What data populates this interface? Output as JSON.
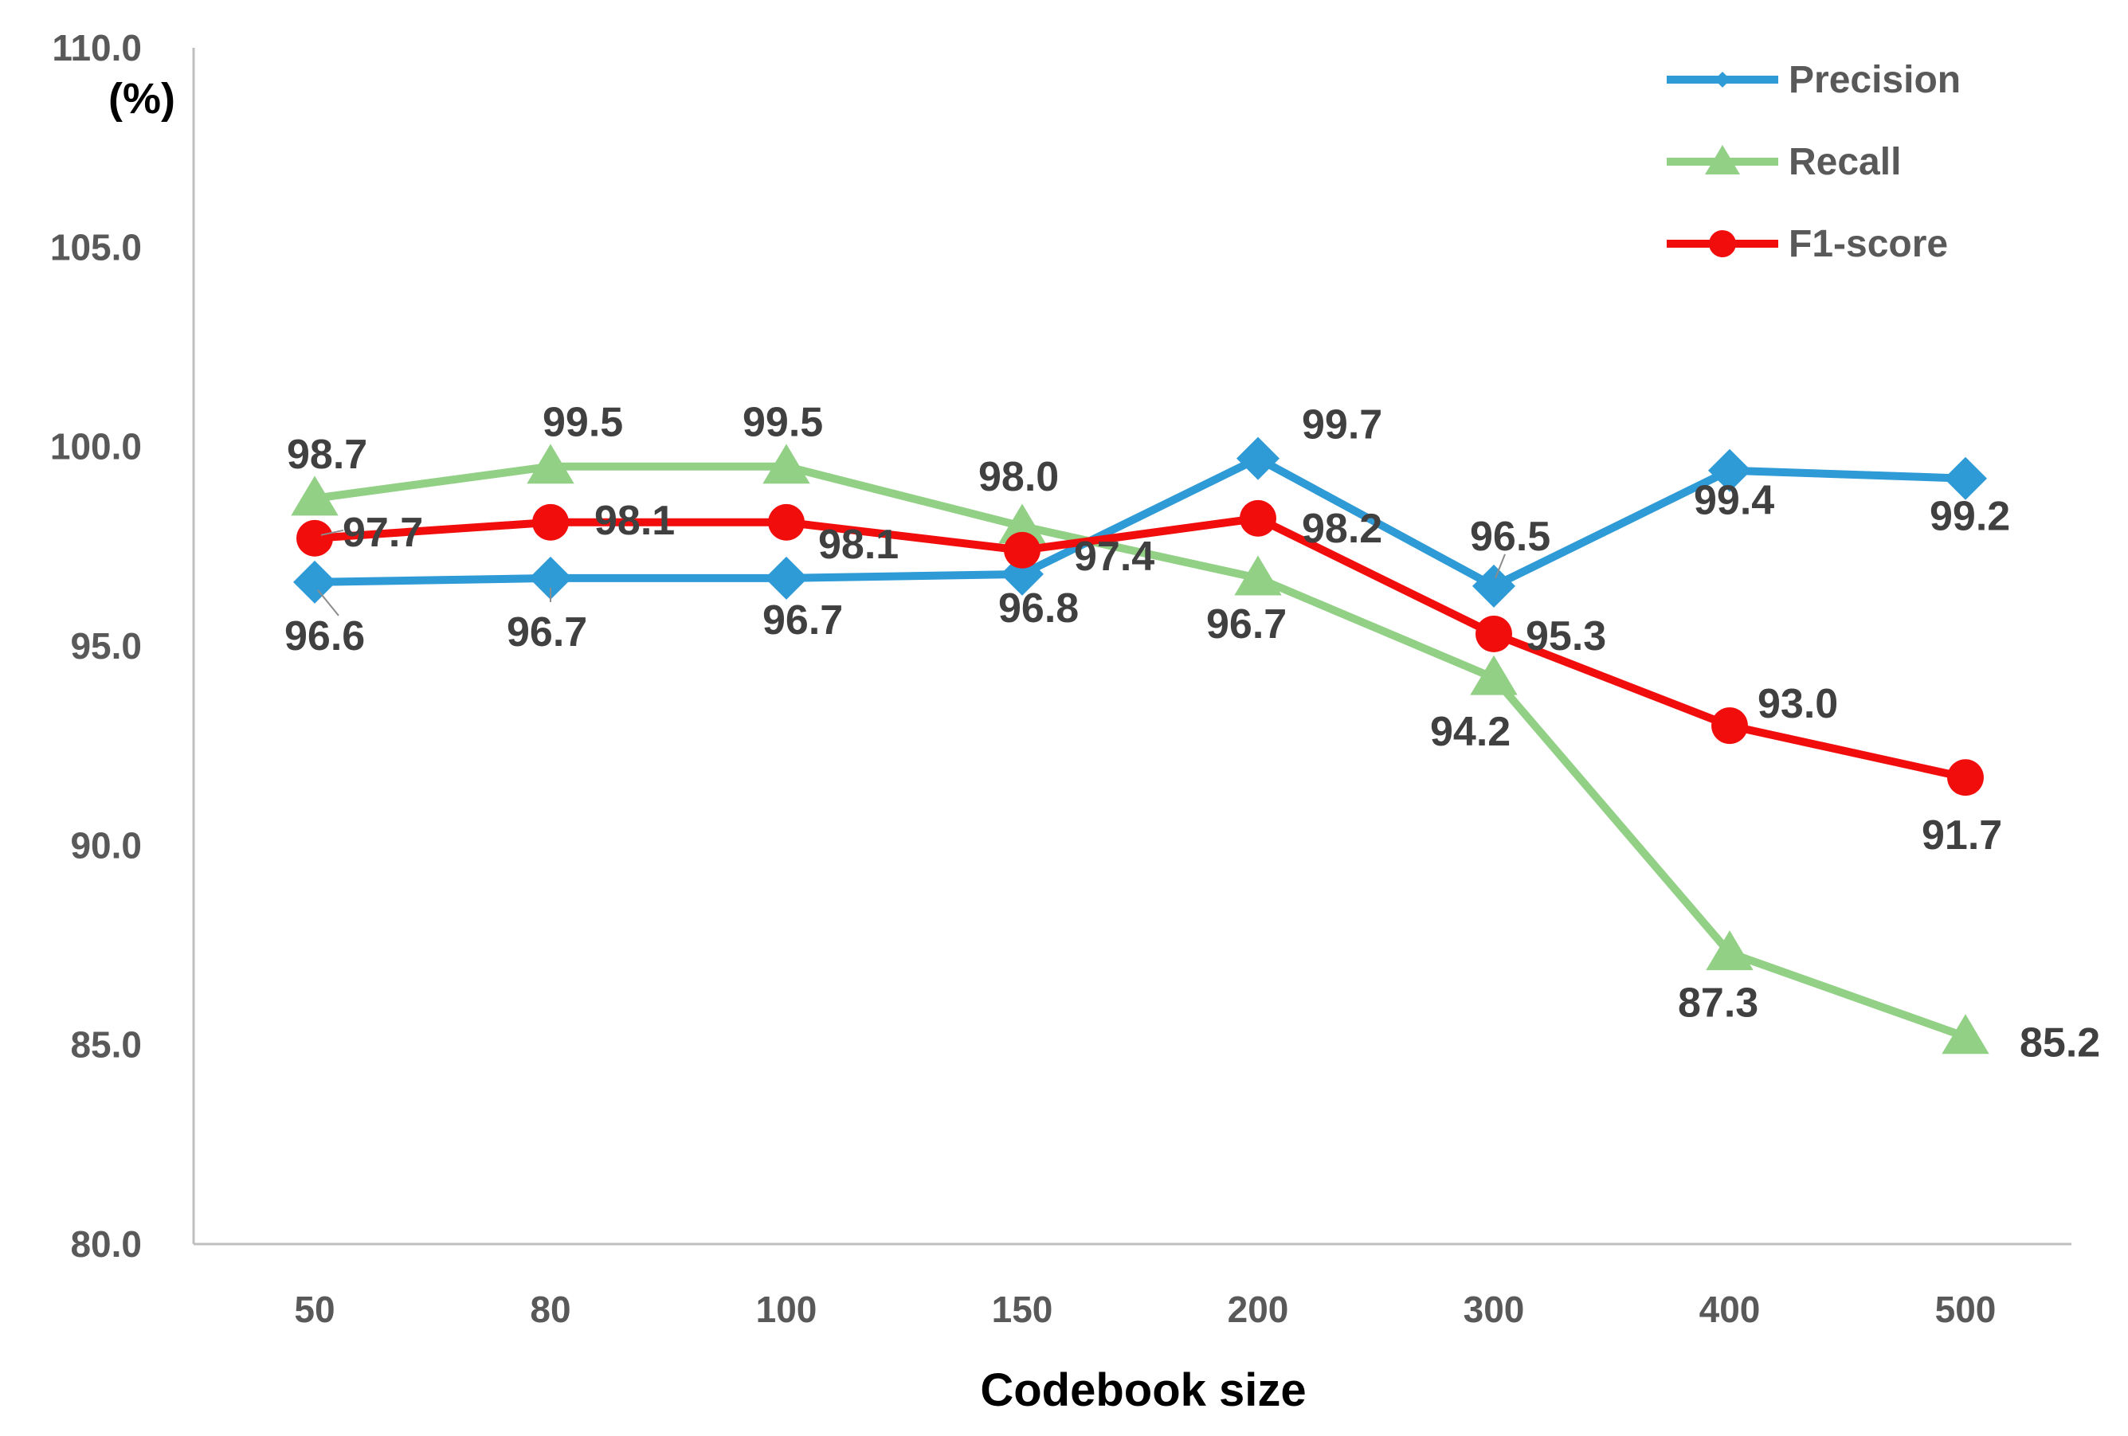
{
  "chart_data": {
    "type": "line",
    "title": "",
    "xlabel": "Codebook size",
    "ylabel": "(%)",
    "ylim": [
      80.0,
      110.0
    ],
    "yticks": [
      "80.0",
      "85.0",
      "90.0",
      "95.0",
      "100.0",
      "105.0",
      "110.0"
    ],
    "categories": [
      "50",
      "80",
      "100",
      "150",
      "200",
      "300",
      "400",
      "500"
    ],
    "legend_position": "top-right",
    "grid": false,
    "series": [
      {
        "name": "Precision",
        "color": "#2E9AD6",
        "marker": "diamond",
        "values": [
          96.6,
          96.7,
          96.7,
          96.8,
          99.7,
          96.5,
          99.4,
          99.2
        ],
        "labels": [
          "96.6",
          "96.7",
          "96.7",
          "96.8",
          "99.7",
          "96.5",
          "99.4",
          "99.2"
        ]
      },
      {
        "name": "Recall",
        "color": "#92D086",
        "marker": "triangle",
        "values": [
          98.7,
          99.5,
          99.5,
          98.0,
          96.7,
          94.2,
          87.3,
          85.2
        ],
        "labels": [
          "98.7",
          "99.5",
          "99.5",
          "98.0",
          "96.7",
          "94.2",
          "87.3",
          "85.2"
        ]
      },
      {
        "name": "F1-score",
        "color": "#F20D0D",
        "marker": "circle",
        "values": [
          97.7,
          98.1,
          98.1,
          97.4,
          98.2,
          95.3,
          93.0,
          91.7
        ],
        "labels": [
          "97.7",
          "98.1",
          "98.1",
          "97.4",
          "98.2",
          "95.3",
          "93.0",
          "91.7"
        ]
      }
    ]
  }
}
